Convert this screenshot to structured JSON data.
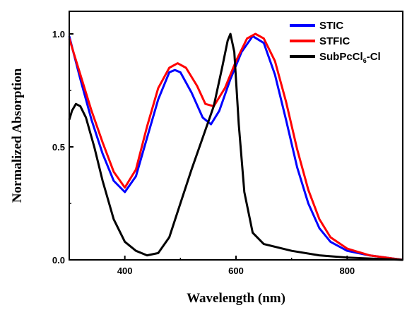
{
  "chart_data": {
    "type": "line",
    "title": "",
    "xlabel": "Wavelength (nm)",
    "ylabel": "Normalized Absorption",
    "xlim": [
      300,
      900
    ],
    "ylim": [
      0.0,
      1.0
    ],
    "x_ticks": [
      "400",
      "600",
      "800"
    ],
    "y_ticks": [
      "0.0",
      "0.5",
      "1.0"
    ],
    "grid": false,
    "legend_position": "top-right",
    "series": [
      {
        "name": "STIC",
        "color": "#0000ff",
        "points": [
          [
            300,
            0.99
          ],
          [
            320,
            0.8
          ],
          [
            340,
            0.62
          ],
          [
            360,
            0.47
          ],
          [
            380,
            0.35
          ],
          [
            400,
            0.3
          ],
          [
            420,
            0.37
          ],
          [
            440,
            0.54
          ],
          [
            460,
            0.71
          ],
          [
            480,
            0.83
          ],
          [
            490,
            0.84
          ],
          [
            500,
            0.83
          ],
          [
            520,
            0.74
          ],
          [
            540,
            0.63
          ],
          [
            555,
            0.6
          ],
          [
            570,
            0.66
          ],
          [
            590,
            0.8
          ],
          [
            610,
            0.92
          ],
          [
            630,
            0.99
          ],
          [
            650,
            0.96
          ],
          [
            670,
            0.82
          ],
          [
            690,
            0.62
          ],
          [
            710,
            0.41
          ],
          [
            730,
            0.25
          ],
          [
            750,
            0.14
          ],
          [
            770,
            0.08
          ],
          [
            800,
            0.04
          ],
          [
            840,
            0.02
          ],
          [
            900,
            0.0
          ]
        ]
      },
      {
        "name": "STFIC",
        "color": "#ff0000",
        "points": [
          [
            300,
            0.98
          ],
          [
            320,
            0.82
          ],
          [
            340,
            0.66
          ],
          [
            360,
            0.52
          ],
          [
            380,
            0.39
          ],
          [
            400,
            0.32
          ],
          [
            420,
            0.4
          ],
          [
            440,
            0.59
          ],
          [
            460,
            0.76
          ],
          [
            480,
            0.85
          ],
          [
            495,
            0.87
          ],
          [
            510,
            0.85
          ],
          [
            530,
            0.77
          ],
          [
            545,
            0.69
          ],
          [
            560,
            0.68
          ],
          [
            580,
            0.76
          ],
          [
            600,
            0.88
          ],
          [
            620,
            0.98
          ],
          [
            635,
            1.0
          ],
          [
            650,
            0.98
          ],
          [
            670,
            0.88
          ],
          [
            690,
            0.7
          ],
          [
            710,
            0.49
          ],
          [
            730,
            0.31
          ],
          [
            750,
            0.18
          ],
          [
            770,
            0.1
          ],
          [
            800,
            0.05
          ],
          [
            840,
            0.02
          ],
          [
            900,
            0.0
          ]
        ]
      },
      {
        "name": "SubPcCl₆-Cl",
        "legend_parts": [
          "SubPcCl",
          "6",
          "-Cl"
        ],
        "color": "#000000",
        "points": [
          [
            300,
            0.62
          ],
          [
            305,
            0.66
          ],
          [
            312,
            0.69
          ],
          [
            320,
            0.68
          ],
          [
            330,
            0.63
          ],
          [
            345,
            0.5
          ],
          [
            360,
            0.35
          ],
          [
            380,
            0.18
          ],
          [
            400,
            0.08
          ],
          [
            420,
            0.04
          ],
          [
            440,
            0.02
          ],
          [
            460,
            0.03
          ],
          [
            480,
            0.1
          ],
          [
            500,
            0.25
          ],
          [
            520,
            0.4
          ],
          [
            540,
            0.54
          ],
          [
            560,
            0.68
          ],
          [
            575,
            0.85
          ],
          [
            585,
            0.97
          ],
          [
            590,
            1.0
          ],
          [
            597,
            0.92
          ],
          [
            605,
            0.6
          ],
          [
            615,
            0.3
          ],
          [
            630,
            0.12
          ],
          [
            650,
            0.07
          ],
          [
            700,
            0.04
          ],
          [
            750,
            0.02
          ],
          [
            800,
            0.01
          ],
          [
            900,
            0.0
          ]
        ]
      }
    ]
  }
}
